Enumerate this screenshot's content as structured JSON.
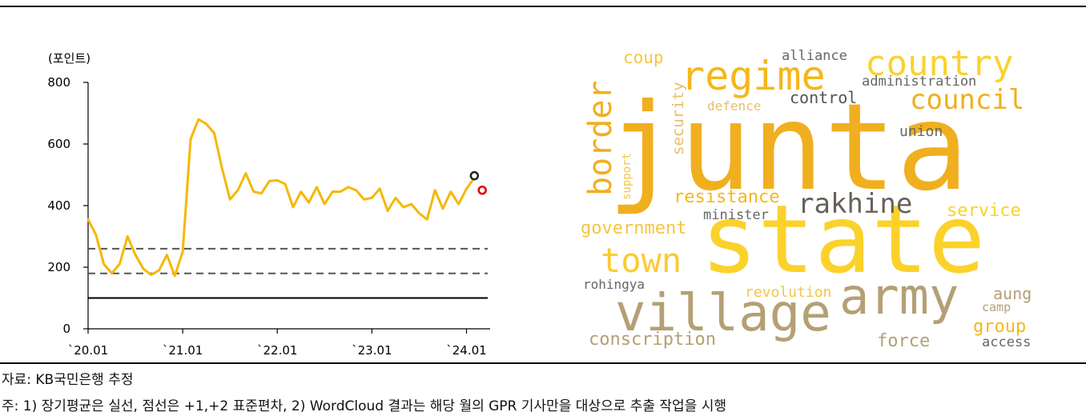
{
  "chart_data": {
    "type": "line",
    "ylabel": "(포인트)",
    "ylim": [
      0,
      800
    ],
    "yticks": [
      "0",
      "200",
      "400",
      "600",
      "800"
    ],
    "xlim": [
      0,
      51
    ],
    "xticks": [
      {
        "label": "`20.01",
        "x": 0
      },
      {
        "label": "`21.01",
        "x": 12
      },
      {
        "label": "`22.01",
        "x": 24
      },
      {
        "label": "`23.01",
        "x": 36
      },
      {
        "label": "`24.01",
        "x": 48
      }
    ],
    "series": [
      {
        "values": [
          355,
          305,
          210,
          180,
          210,
          300,
          240,
          195,
          175,
          190,
          240,
          172,
          250,
          615,
          680,
          665,
          635,
          520,
          420,
          450,
          505,
          445,
          440,
          480,
          482,
          470,
          395,
          445,
          410,
          460,
          405,
          445,
          445,
          460,
          450,
          420,
          425,
          455,
          383,
          425,
          395,
          405,
          375,
          355,
          450,
          390,
          445,
          405,
          455,
          490
        ]
      }
    ],
    "reference_lines": {
      "long_term_average": 100,
      "plus_1_sd": 180,
      "plus_2_sd": 260
    },
    "markers": [
      {
        "name": "black-circle",
        "x": 49,
        "y": 497,
        "color": "#222222"
      },
      {
        "name": "red-circle",
        "x": 50,
        "y": 450,
        "color": "#e00000"
      }
    ],
    "colors": {
      "series": "#F5B800",
      "avg": "#000000",
      "sd": "#555555"
    }
  },
  "wordcloud": [
    {
      "text": "junta",
      "size": 150,
      "color": "#F0AF1E"
    },
    {
      "text": "state",
      "size": 118,
      "color": "#FBD22B"
    },
    {
      "text": "village",
      "size": 64,
      "color": "#B4A074"
    },
    {
      "text": "army",
      "size": 62,
      "color": "#B4A074"
    },
    {
      "text": "regime",
      "size": 50,
      "color": "#F5B71A"
    },
    {
      "text": "country",
      "size": 44,
      "color": "#FBD22B"
    },
    {
      "text": "town",
      "size": 42,
      "color": "#FBCB30"
    },
    {
      "text": "border",
      "size": 40,
      "color": "#F0AF1E"
    },
    {
      "text": "council",
      "size": 34,
      "color": "#F0AF1E"
    },
    {
      "text": "rakhine",
      "size": 34,
      "color": "#66615A"
    },
    {
      "text": "coup",
      "size": 21,
      "color": "#F5C542"
    },
    {
      "text": "alliance",
      "size": 17,
      "color": "#666666"
    },
    {
      "text": "administration",
      "size": 17,
      "color": "#666666"
    },
    {
      "text": "defence",
      "size": 16,
      "color": "#E8BE6A"
    },
    {
      "text": "control",
      "size": 20,
      "color": "#555555"
    },
    {
      "text": "union",
      "size": 18,
      "color": "#666666"
    },
    {
      "text": "security",
      "size": 19,
      "color": "#E8BE6A"
    },
    {
      "text": "support",
      "size": 14,
      "color": "#F5C542"
    },
    {
      "text": "resistance",
      "size": 22,
      "color": "#F5B71A"
    },
    {
      "text": "minister",
      "size": 17,
      "color": "#666666"
    },
    {
      "text": "service",
      "size": 22,
      "color": "#FBD22B"
    },
    {
      "text": "government",
      "size": 22,
      "color": "#F5C542"
    },
    {
      "text": "rohingya",
      "size": 16,
      "color": "#666666"
    },
    {
      "text": "revolution",
      "size": 18,
      "color": "#F5C542"
    },
    {
      "text": "aung",
      "size": 20,
      "color": "#B4A074"
    },
    {
      "text": "camp",
      "size": 15,
      "color": "#B4A074"
    },
    {
      "text": "group",
      "size": 22,
      "color": "#F5B71A"
    },
    {
      "text": "conscription",
      "size": 22,
      "color": "#B4A074"
    },
    {
      "text": "force",
      "size": 22,
      "color": "#B4A074"
    },
    {
      "text": "access",
      "size": 17,
      "color": "#666666"
    }
  ],
  "notes": {
    "source": "자료: KB국민은행 추정",
    "footnote": "주: 1) 장기평균은 실선, 점선은 +1,+2 표준편차, 2) WordCloud 결과는 해당 월의 GPR 기사만을 대상으로 추출 작업을 시행"
  }
}
